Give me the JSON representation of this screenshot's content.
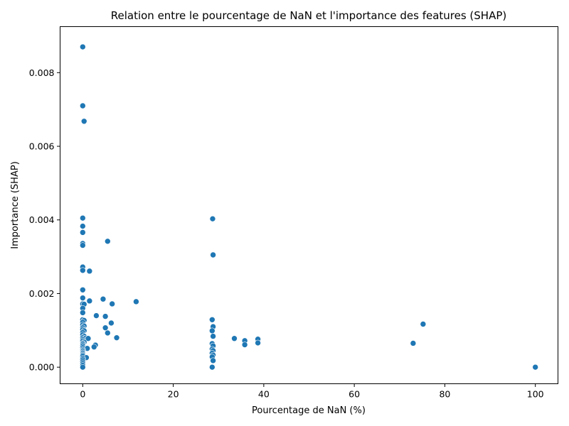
{
  "chart_data": {
    "type": "scatter",
    "title": "Relation entre le pourcentage de NaN et l'importance des features (SHAP)",
    "xlabel": "Pourcentage de NaN (%)",
    "ylabel": "Importance (SHAP)",
    "xlim": [
      -5,
      105
    ],
    "ylim": [
      -0.00045,
      0.00925
    ],
    "xticks": [
      0,
      20,
      40,
      60,
      80,
      100
    ],
    "xtick_labels": [
      "0",
      "20",
      "40",
      "60",
      "80",
      "100"
    ],
    "yticks": [
      0.0,
      0.002,
      0.004,
      0.006,
      0.008
    ],
    "ytick_labels": [
      "0.000",
      "0.002",
      "0.004",
      "0.006",
      "0.008"
    ],
    "grid": false,
    "legend": "none",
    "marker_color": "#1f77b4",
    "points": [
      [
        0.0,
        0.0087
      ],
      [
        0.0,
        0.0071
      ],
      [
        0.3,
        0.00668
      ],
      [
        0.0,
        0.00405
      ],
      [
        0.0,
        0.00383
      ],
      [
        0.0,
        0.00366
      ],
      [
        0.0,
        0.00336
      ],
      [
        0.0,
        0.00331
      ],
      [
        5.5,
        0.00342
      ],
      [
        0.0,
        0.00272
      ],
      [
        0.0,
        0.00263
      ],
      [
        1.5,
        0.00261
      ],
      [
        0.0,
        0.0021
      ],
      [
        0.0,
        0.00188
      ],
      [
        4.5,
        0.00185
      ],
      [
        1.5,
        0.0018
      ],
      [
        11.8,
        0.00178
      ],
      [
        0.0,
        0.00172
      ],
      [
        0.3,
        0.00171
      ],
      [
        6.5,
        0.00172
      ],
      [
        0.0,
        0.0016
      ],
      [
        0.0,
        0.00148
      ],
      [
        3.0,
        0.0014
      ],
      [
        5.0,
        0.00138
      ],
      [
        0.0,
        0.00129
      ],
      [
        0.3,
        0.00127
      ],
      [
        0.0,
        0.00122
      ],
      [
        6.3,
        0.0012
      ],
      [
        0.0,
        0.00115
      ],
      [
        0.3,
        0.00112
      ],
      [
        0.0,
        0.00107
      ],
      [
        5.0,
        0.00107
      ],
      [
        0.0,
        0.00102
      ],
      [
        0.3,
        0.00099
      ],
      [
        0.0,
        0.00094
      ],
      [
        5.5,
        0.00093
      ],
      [
        0.0,
        0.00088
      ],
      [
        0.3,
        0.00084
      ],
      [
        0.0,
        0.0008
      ],
      [
        7.5,
        0.0008
      ],
      [
        0.5,
        0.00078
      ],
      [
        1.2,
        0.00078
      ],
      [
        0.0,
        0.00075
      ],
      [
        0.0,
        0.00071
      ],
      [
        0.3,
        0.00068
      ],
      [
        0.0,
        0.00065
      ],
      [
        0.0,
        0.00062
      ],
      [
        2.8,
        0.0006
      ],
      [
        0.0,
        0.00058
      ],
      [
        2.5,
        0.00055
      ],
      [
        0.0,
        0.00053
      ],
      [
        1.0,
        0.00051
      ],
      [
        0.0,
        0.00048
      ],
      [
        0.0,
        0.00045
      ],
      [
        0.0,
        0.00042
      ],
      [
        0.0,
        0.00039
      ],
      [
        0.0,
        0.00036
      ],
      [
        0.0,
        0.00033
      ],
      [
        0.0,
        0.0003
      ],
      [
        0.8,
        0.00026
      ],
      [
        0.0,
        0.00024
      ],
      [
        0.0,
        0.0002
      ],
      [
        0.0,
        0.00015
      ],
      [
        0.0,
        0.0001
      ],
      [
        0.0,
        5e-05
      ],
      [
        0.0,
        0.0
      ],
      [
        28.7,
        0.00403
      ],
      [
        28.8,
        0.00305
      ],
      [
        28.6,
        0.00129
      ],
      [
        28.8,
        0.0011
      ],
      [
        28.6,
        0.00099
      ],
      [
        28.8,
        0.00084
      ],
      [
        28.6,
        0.00064
      ],
      [
        28.8,
        0.00058
      ],
      [
        28.6,
        0.00049
      ],
      [
        28.8,
        0.00045
      ],
      [
        28.6,
        0.00038
      ],
      [
        28.8,
        0.00033
      ],
      [
        28.6,
        0.00028
      ],
      [
        28.8,
        0.00018
      ],
      [
        28.6,
        0.0
      ],
      [
        33.5,
        0.00078
      ],
      [
        35.8,
        0.00072
      ],
      [
        35.8,
        0.00061
      ],
      [
        38.7,
        0.00076
      ],
      [
        38.7,
        0.00066
      ],
      [
        73.0,
        0.00065
      ],
      [
        75.2,
        0.00117
      ],
      [
        100.0,
        0.0
      ]
    ]
  }
}
